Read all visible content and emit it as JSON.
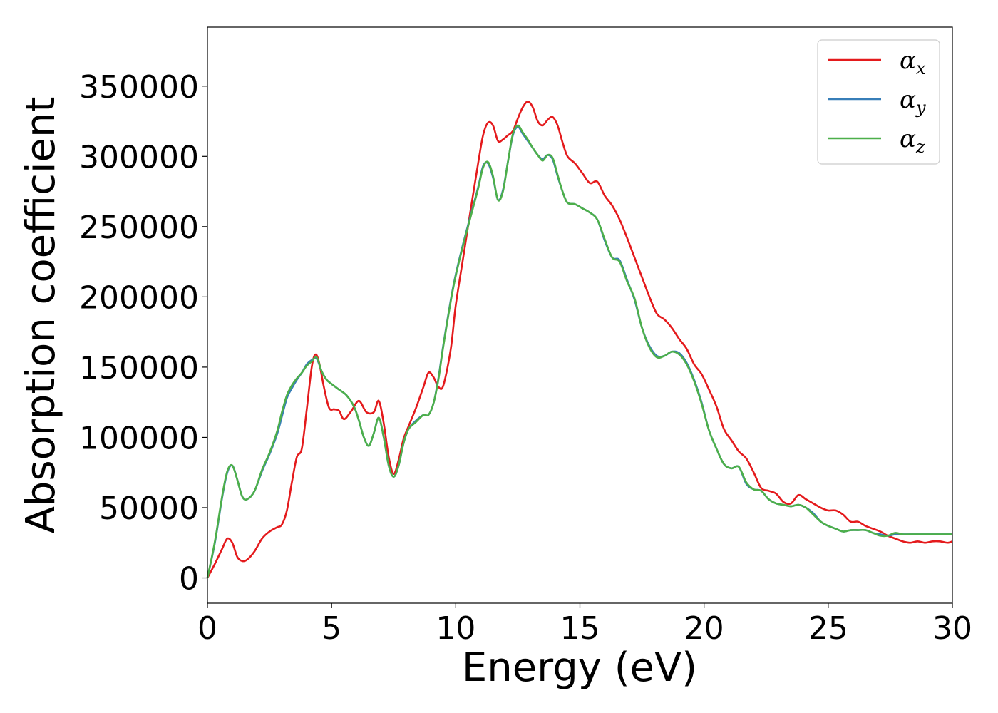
{
  "chart_data": {
    "type": "line",
    "xlabel": "Energy (eV)",
    "ylabel": "Absorption coefficient",
    "xlim": [
      0,
      30
    ],
    "ylim": [
      -18000,
      392000
    ],
    "xticks": [
      0,
      5,
      10,
      15,
      20,
      25,
      30
    ],
    "xtick_labels": [
      "0",
      "5",
      "10",
      "15",
      "20",
      "25",
      "30"
    ],
    "yticks": [
      0,
      50000,
      100000,
      150000,
      200000,
      250000,
      300000,
      350000
    ],
    "ytick_labels": [
      "0",
      "50000",
      "100000",
      "150000",
      "200000",
      "250000",
      "300000",
      "350000"
    ],
    "grid": false,
    "legend_position": "top-right",
    "series": [
      {
        "name": "α",
        "subscript": "x",
        "color": "#e41a1c",
        "x": [
          0,
          0.3,
          0.6,
          0.8,
          1.0,
          1.2,
          1.4,
          1.6,
          1.9,
          2.2,
          2.5,
          2.8,
          3.0,
          3.2,
          3.4,
          3.6,
          3.8,
          4.0,
          4.2,
          4.35,
          4.5,
          4.7,
          4.9,
          5.1,
          5.3,
          5.5,
          5.8,
          6.1,
          6.4,
          6.7,
          6.9,
          7.1,
          7.3,
          7.5,
          7.7,
          7.9,
          8.1,
          8.4,
          8.7,
          8.9,
          9.1,
          9.3,
          9.5,
          9.8,
          10.0,
          10.3,
          10.6,
          10.9,
          11.1,
          11.3,
          11.5,
          11.7,
          11.9,
          12.1,
          12.3,
          12.5,
          12.7,
          12.9,
          13.1,
          13.3,
          13.5,
          13.7,
          13.9,
          14.1,
          14.3,
          14.5,
          14.8,
          15.1,
          15.4,
          15.7,
          16.0,
          16.3,
          16.6,
          16.9,
          17.2,
          17.5,
          17.8,
          18.1,
          18.4,
          18.7,
          19.0,
          19.3,
          19.6,
          19.9,
          20.2,
          20.5,
          20.8,
          21.1,
          21.4,
          21.7,
          22.0,
          22.3,
          22.6,
          22.9,
          23.2,
          23.5,
          23.8,
          24.1,
          24.4,
          24.7,
          25.0,
          25.3,
          25.6,
          25.9,
          26.2,
          26.5,
          26.8,
          27.1,
          27.4,
          27.7,
          28.0,
          28.3,
          28.6,
          28.9,
          29.2,
          29.5,
          29.8,
          30.0
        ],
        "y": [
          0,
          10000,
          21000,
          28000,
          25000,
          15000,
          12000,
          13000,
          19000,
          28000,
          33000,
          36000,
          38000,
          48000,
          68000,
          86000,
          92000,
          120000,
          150000,
          159000,
          153000,
          135000,
          121000,
          120000,
          119000,
          113000,
          119000,
          126000,
          118000,
          118000,
          126000,
          110000,
          86000,
          74000,
          84000,
          99000,
          108000,
          121000,
          136000,
          146000,
          143000,
          136000,
          137000,
          163000,
          194000,
          228000,
          262000,
          295000,
          315000,
          324000,
          322000,
          311000,
          312000,
          315000,
          318000,
          327000,
          335000,
          339000,
          335000,
          325000,
          322000,
          326000,
          328000,
          322000,
          310000,
          300000,
          295000,
          288000,
          281000,
          282000,
          272000,
          265000,
          255000,
          242000,
          228000,
          214000,
          200000,
          188000,
          184000,
          178000,
          170000,
          163000,
          152000,
          145000,
          134000,
          122000,
          106000,
          98000,
          90000,
          85000,
          75000,
          64000,
          62000,
          60000,
          54000,
          53000,
          59000,
          56000,
          53000,
          50000,
          48000,
          48000,
          45000,
          40000,
          40000,
          37000,
          35000,
          33000,
          30000,
          28000,
          26000,
          25000,
          26000,
          25000,
          26000,
          26000,
          25000,
          26000
        ]
      },
      {
        "name": "α",
        "subscript": "y",
        "color": "#377eb8",
        "x": [
          0,
          0.3,
          0.6,
          0.8,
          1.0,
          1.2,
          1.4,
          1.6,
          1.9,
          2.2,
          2.5,
          2.8,
          3.0,
          3.2,
          3.4,
          3.6,
          3.8,
          4.0,
          4.2,
          4.4,
          4.6,
          4.8,
          5.0,
          5.3,
          5.6,
          5.9,
          6.1,
          6.3,
          6.5,
          6.7,
          6.9,
          7.1,
          7.3,
          7.5,
          7.7,
          7.9,
          8.1,
          8.4,
          8.7,
          8.9,
          9.1,
          9.3,
          9.5,
          9.8,
          10.0,
          10.3,
          10.6,
          10.9,
          11.1,
          11.3,
          11.5,
          11.7,
          11.9,
          12.1,
          12.3,
          12.5,
          12.7,
          12.9,
          13.1,
          13.3,
          13.5,
          13.7,
          13.9,
          14.1,
          14.3,
          14.5,
          14.8,
          15.1,
          15.4,
          15.7,
          16.0,
          16.3,
          16.6,
          16.9,
          17.2,
          17.5,
          17.8,
          18.1,
          18.4,
          18.7,
          19.0,
          19.3,
          19.6,
          19.9,
          20.2,
          20.5,
          20.8,
          21.1,
          21.4,
          21.7,
          22.0,
          22.3,
          22.6,
          22.9,
          23.2,
          23.5,
          23.8,
          24.1,
          24.4,
          24.7,
          25.0,
          25.3,
          25.6,
          25.9,
          26.2,
          26.5,
          26.8,
          27.1,
          27.4,
          27.7,
          28.0,
          28.3,
          28.6,
          28.9,
          29.2,
          29.5,
          29.8,
          30.0
        ],
        "y": [
          0,
          25000,
          58000,
          75000,
          80000,
          70000,
          58000,
          56000,
          62000,
          76000,
          88000,
          102000,
          115000,
          128000,
          135000,
          141000,
          146000,
          152000,
          155000,
          156000,
          147000,
          141000,
          138000,
          134000,
          130000,
          122000,
          112000,
          100000,
          94000,
          103000,
          114000,
          100000,
          80000,
          72000,
          80000,
          96000,
          106000,
          112000,
          116000,
          116000,
          124000,
          142000,
          166000,
          198000,
          216000,
          238000,
          258000,
          278000,
          293000,
          295000,
          285000,
          269000,
          276000,
          296000,
          315000,
          321000,
          316000,
          311000,
          306000,
          301000,
          298000,
          301000,
          298000,
          286000,
          275000,
          267000,
          266000,
          263000,
          260000,
          255000,
          240000,
          228000,
          226000,
          212000,
          198000,
          178000,
          165000,
          158000,
          158000,
          161000,
          160000,
          153000,
          141000,
          125000,
          105000,
          92000,
          81000,
          78000,
          79000,
          67000,
          63000,
          62000,
          56000,
          53000,
          52000,
          51000,
          52000,
          50000,
          46000,
          40000,
          37000,
          35000,
          33000,
          34000,
          34000,
          34000,
          32000,
          31000,
          30000,
          31000,
          31000,
          31000,
          31000,
          31000,
          31000,
          31000,
          31000,
          31000
        ]
      },
      {
        "name": "α",
        "subscript": "z",
        "color": "#4daf4a",
        "x": [
          0,
          0.3,
          0.6,
          0.8,
          1.0,
          1.2,
          1.4,
          1.6,
          1.9,
          2.2,
          2.5,
          2.8,
          3.0,
          3.2,
          3.4,
          3.6,
          3.8,
          4.0,
          4.2,
          4.4,
          4.6,
          4.8,
          5.0,
          5.3,
          5.6,
          5.9,
          6.1,
          6.3,
          6.5,
          6.7,
          6.9,
          7.1,
          7.3,
          7.5,
          7.7,
          7.9,
          8.1,
          8.4,
          8.7,
          8.9,
          9.1,
          9.3,
          9.5,
          9.8,
          10.0,
          10.3,
          10.6,
          10.9,
          11.1,
          11.3,
          11.5,
          11.7,
          11.9,
          12.1,
          12.3,
          12.5,
          12.7,
          12.9,
          13.1,
          13.3,
          13.5,
          13.7,
          13.9,
          14.1,
          14.3,
          14.5,
          14.8,
          15.1,
          15.4,
          15.7,
          16.0,
          16.3,
          16.6,
          16.9,
          17.2,
          17.5,
          17.8,
          18.1,
          18.4,
          18.7,
          19.0,
          19.3,
          19.6,
          19.9,
          20.2,
          20.5,
          20.8,
          21.1,
          21.4,
          21.7,
          22.0,
          22.3,
          22.6,
          22.9,
          23.2,
          23.5,
          23.8,
          24.1,
          24.4,
          24.7,
          25.0,
          25.3,
          25.6,
          25.9,
          26.2,
          26.5,
          26.8,
          27.1,
          27.4,
          27.7,
          28.0,
          28.3,
          28.6,
          28.9,
          29.2,
          29.5,
          29.8,
          30.0
        ],
        "y": [
          0,
          26000,
          59000,
          76000,
          80000,
          70000,
          58000,
          56000,
          62000,
          77000,
          89000,
          104000,
          118000,
          130000,
          137000,
          142000,
          146000,
          151000,
          154000,
          157000,
          147000,
          141000,
          138000,
          134000,
          130000,
          122000,
          112000,
          100000,
          94000,
          103000,
          114000,
          100000,
          80000,
          72000,
          80000,
          96000,
          106000,
          111000,
          116000,
          116000,
          124000,
          141000,
          165000,
          197000,
          215000,
          237000,
          257000,
          277000,
          292000,
          296000,
          286000,
          269000,
          275000,
          296000,
          316000,
          322000,
          317000,
          312000,
          306000,
          301000,
          297000,
          301000,
          299000,
          287000,
          275000,
          267000,
          266000,
          263000,
          260000,
          255000,
          241000,
          228000,
          225000,
          211000,
          199000,
          178000,
          164000,
          157000,
          158000,
          161000,
          159000,
          152000,
          140000,
          124000,
          105000,
          92000,
          81000,
          78000,
          79000,
          68000,
          63000,
          62000,
          56000,
          53000,
          52000,
          51000,
          52000,
          50000,
          45000,
          40000,
          37000,
          35000,
          33000,
          34000,
          34000,
          34000,
          32000,
          30000,
          30000,
          32000,
          31000,
          31000,
          31000,
          31000,
          31000,
          31000,
          31000,
          31000
        ]
      }
    ]
  }
}
